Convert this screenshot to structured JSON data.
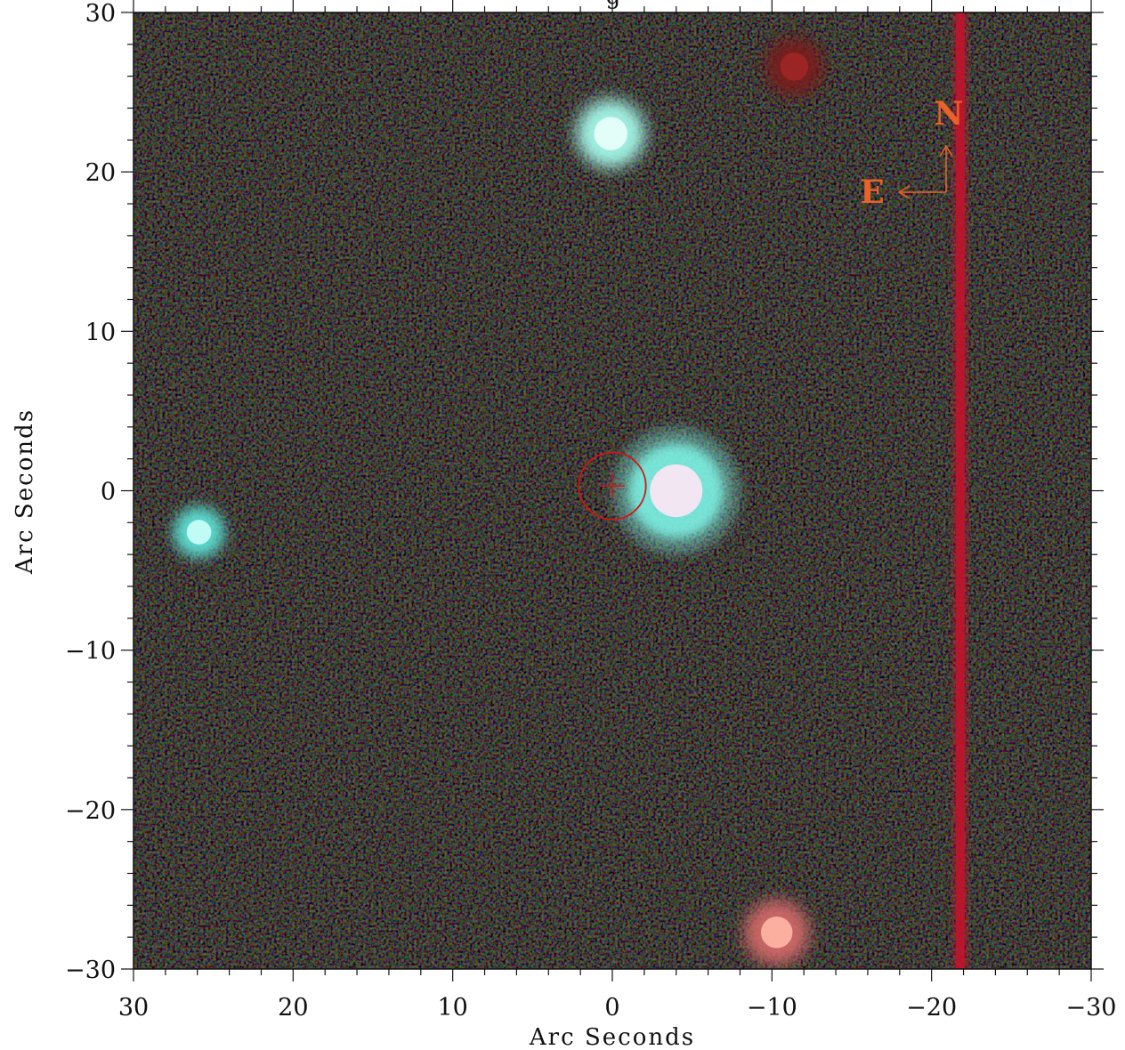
{
  "image": {
    "title_fragment": "g",
    "background_color": "#070406",
    "frame_color": "#111111",
    "streak_color": "#c0142c",
    "target_marker_color": "#d41414"
  },
  "axes": {
    "x_label": "Arc Seconds",
    "y_label": "Arc Seconds",
    "x_range": [
      30,
      -30
    ],
    "y_range": [
      -30,
      30
    ],
    "x_ticks": [
      30,
      20,
      10,
      0,
      -10,
      -20,
      -30
    ],
    "x_tick_labels": [
      "30",
      "20",
      "10",
      "0",
      "−10",
      "−20",
      "−30"
    ],
    "y_ticks": [
      30,
      20,
      10,
      0,
      -10,
      -20,
      -30
    ],
    "y_tick_labels": [
      "30",
      "20",
      "10",
      "0",
      "−10",
      "−20",
      "−30"
    ]
  },
  "compass": {
    "north_label": "N",
    "east_label": "E",
    "color": "#e8622a"
  },
  "sources": [
    {
      "name": "star-north",
      "x": 0.1,
      "y": 22.4,
      "color": "#a8fff0",
      "core": "#eafffb"
    },
    {
      "name": "star-bright-near-target",
      "x": -4.0,
      "y": 0.0,
      "color": "#7ff5e8",
      "core": "#ffe6f6"
    },
    {
      "name": "star-west",
      "x": 25.9,
      "y": -2.6,
      "color": "#5fe8dd",
      "core": "#ccfff9"
    },
    {
      "name": "source-south-red",
      "x": -10.3,
      "y": -27.7,
      "color": "#d56a6a",
      "core": "#ffb7a5"
    },
    {
      "name": "faint-red-north",
      "x": -11.4,
      "y": 26.6,
      "color": "#7a1a1a",
      "core": "#a02626"
    }
  ],
  "target": {
    "x": 0.0,
    "y": 0.3,
    "radius_arcsec": 2.1
  },
  "streak": {
    "x": -21.8
  }
}
